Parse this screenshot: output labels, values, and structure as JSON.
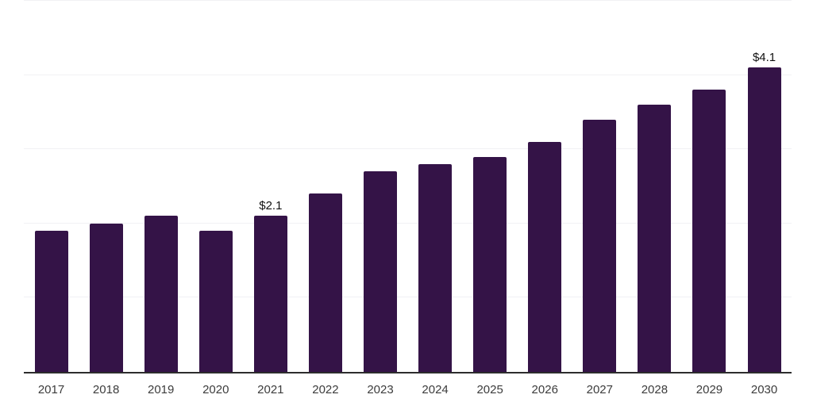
{
  "chart_data": {
    "type": "bar",
    "title": "",
    "xlabel": "",
    "ylabel": "",
    "categories": [
      "2017",
      "2018",
      "2019",
      "2020",
      "2021",
      "2022",
      "2023",
      "2024",
      "2025",
      "2026",
      "2027",
      "2028",
      "2029",
      "2030"
    ],
    "values": [
      1.9,
      2.0,
      2.1,
      1.9,
      2.1,
      2.4,
      2.7,
      2.8,
      2.9,
      3.1,
      3.4,
      3.6,
      3.8,
      4.1
    ],
    "point_labels": [
      "",
      "",
      "",
      "",
      "$2.1",
      "",
      "",
      "",
      "",
      "",
      "",
      "",
      "",
      "$4.1"
    ],
    "ylim": [
      0,
      5
    ],
    "grid": true,
    "grid_step": 1,
    "y_tick_labels_visible": false,
    "legend": "none",
    "colors": {
      "bar": "#341347",
      "gridline": "#f1f1f4",
      "axis": "#2d2d2d",
      "value_label": "#111111",
      "tick_label": "#3c3c3c",
      "background": "#ffffff"
    }
  }
}
